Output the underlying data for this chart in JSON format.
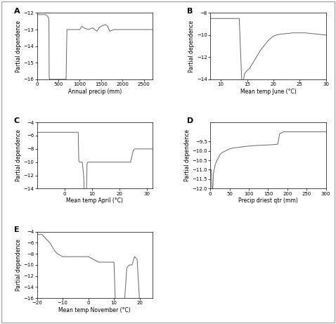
{
  "panel_labels": [
    "A",
    "B",
    "C",
    "D",
    "E"
  ],
  "xlabels": [
    "Annual precip (mm)",
    "Mean temp June (°C)",
    "Mean temp April (°C)",
    "Precip driest qtr (mm)",
    "Mean temp November (°C)"
  ],
  "ylabel": "Partial dependence",
  "A": {
    "xlim": [
      0,
      2700
    ],
    "ylim": [
      -16,
      -12
    ],
    "xticks": [
      0,
      500,
      1000,
      1500,
      2000,
      2500
    ],
    "yticks": [
      -16,
      -15,
      -14,
      -13,
      -12
    ],
    "x": [
      0,
      50,
      100,
      150,
      200,
      250,
      270,
      280,
      285,
      290,
      295,
      300,
      310,
      350,
      400,
      500,
      600,
      650,
      680,
      700,
      750,
      800,
      850,
      900,
      950,
      1000,
      1050,
      1100,
      1200,
      1300,
      1350,
      1400,
      1450,
      1500,
      1550,
      1600,
      1650,
      1700,
      1800,
      2000,
      2200,
      2500,
      2700
    ],
    "y": [
      -12.1,
      -12.1,
      -12.1,
      -12.1,
      -12.1,
      -12.2,
      -12.3,
      -12.5,
      -15.8,
      -16.0,
      -16.0,
      -16.0,
      -16.0,
      -16.0,
      -16.0,
      -16.0,
      -16.0,
      -16.0,
      -16.0,
      -13.0,
      -13.0,
      -13.0,
      -13.0,
      -13.0,
      -13.0,
      -13.0,
      -12.8,
      -12.9,
      -13.0,
      -12.9,
      -13.0,
      -13.1,
      -12.9,
      -12.8,
      -12.75,
      -12.7,
      -12.8,
      -13.1,
      -13.0,
      -13.0,
      -13.0,
      -13.0,
      -13.0
    ]
  },
  "B": {
    "xlim": [
      8,
      30
    ],
    "ylim": [
      -14,
      -8
    ],
    "xticks": [
      10,
      15,
      20,
      25,
      30
    ],
    "yticks": [
      -14,
      -12,
      -10,
      -8
    ],
    "x": [
      8,
      9,
      10,
      11,
      12,
      13,
      13.5,
      14.0,
      14.2,
      14.5,
      15.0,
      15.5,
      16.0,
      16.5,
      17.0,
      17.5,
      18.0,
      18.5,
      19.0,
      19.5,
      20.0,
      20.5,
      21.0,
      21.5,
      22.0,
      22.5,
      23.0,
      23.5,
      24.0,
      25.0,
      26.0,
      27.0,
      28.0,
      29.0,
      30.0
    ],
    "y": [
      -8.5,
      -8.5,
      -8.5,
      -8.5,
      -8.5,
      -8.5,
      -8.5,
      -14.4,
      -14.4,
      -13.5,
      -13.2,
      -13.0,
      -12.6,
      -12.2,
      -11.8,
      -11.4,
      -11.1,
      -10.8,
      -10.5,
      -10.3,
      -10.1,
      -10.0,
      -9.95,
      -9.9,
      -9.9,
      -9.85,
      -9.85,
      -9.8,
      -9.8,
      -9.8,
      -9.8,
      -9.85,
      -9.9,
      -9.95,
      -10.0
    ]
  },
  "C": {
    "xlim": [
      -10,
      32
    ],
    "ylim": [
      -14,
      -4
    ],
    "xticks": [
      0,
      10,
      20,
      30
    ],
    "yticks": [
      -14,
      -12,
      -10,
      -8,
      -6,
      -4
    ],
    "x": [
      -10,
      -8,
      -6,
      -4,
      -2,
      0,
      1,
      2,
      3,
      4,
      5,
      5.2,
      5.5,
      6.0,
      6.5,
      7.0,
      7.2,
      7.5,
      8.0,
      8.2,
      8.5,
      9.0,
      10.0,
      12.0,
      15.0,
      18.0,
      20.0,
      22.0,
      24.0,
      25.0,
      25.5,
      26.0,
      26.5,
      27.0,
      28.0,
      30.0,
      32.0
    ],
    "y": [
      -5.5,
      -5.5,
      -5.5,
      -5.5,
      -5.5,
      -5.5,
      -5.5,
      -5.5,
      -5.5,
      -5.5,
      -5.5,
      -9.8,
      -10.0,
      -10.0,
      -10.0,
      -12.2,
      -14.5,
      -14.5,
      -14.5,
      -10.2,
      -10.0,
      -10.0,
      -10.0,
      -10.0,
      -10.0,
      -10.0,
      -10.0,
      -10.0,
      -10.0,
      -8.2,
      -8.0,
      -8.0,
      -8.0,
      -8.0,
      -8.0,
      -8.0,
      -8.0
    ]
  },
  "D": {
    "xlim": [
      0,
      300
    ],
    "ylim": [
      -12.0,
      -8.5
    ],
    "xticks": [
      0,
      50,
      100,
      150,
      200,
      250,
      300
    ],
    "yticks": [
      -12.0,
      -11.5,
      -11.0,
      -10.5,
      -10.0,
      -9.5
    ],
    "x": [
      0,
      2,
      3,
      4,
      5,
      6,
      7,
      8,
      10,
      12,
      15,
      20,
      25,
      30,
      40,
      50,
      60,
      80,
      100,
      120,
      140,
      160,
      175,
      180,
      185,
      190,
      195,
      200,
      210,
      220,
      240,
      260,
      280,
      300
    ],
    "y": [
      -11.0,
      -11.0,
      -11.2,
      -11.9,
      -12.0,
      -12.0,
      -11.8,
      -11.2,
      -11.0,
      -10.8,
      -10.6,
      -10.4,
      -10.2,
      -10.1,
      -10.0,
      -9.9,
      -9.85,
      -9.8,
      -9.75,
      -9.72,
      -9.7,
      -9.68,
      -9.65,
      -9.1,
      -9.05,
      -9.0,
      -9.0,
      -9.0,
      -9.0,
      -9.0,
      -9.0,
      -9.0,
      -9.0,
      -9.0
    ]
  },
  "E": {
    "xlim": [
      -20,
      25
    ],
    "ylim": [
      -16,
      -4
    ],
    "xticks": [
      -20,
      -10,
      0,
      10,
      20
    ],
    "yticks": [
      -16,
      -14,
      -12,
      -10,
      -8,
      -6,
      -4
    ],
    "x": [
      -20,
      -18,
      -16,
      -15,
      -13,
      -12,
      -10,
      -8,
      -6,
      -4,
      -2,
      0,
      2,
      4,
      6,
      8,
      10,
      10.5,
      11,
      12,
      13,
      14,
      15,
      16,
      17,
      18,
      19,
      20,
      21,
      22,
      23,
      24,
      25
    ],
    "y": [
      -4.5,
      -4.5,
      -5.5,
      -6.0,
      -7.5,
      -8.0,
      -8.5,
      -8.5,
      -8.5,
      -8.5,
      -8.5,
      -8.5,
      -9.0,
      -9.5,
      -9.5,
      -9.5,
      -9.5,
      -16.5,
      -17.0,
      -17.0,
      -17.0,
      -17.0,
      -10.5,
      -10.0,
      -10.0,
      -8.5,
      -9.0,
      -17.0,
      -17.0,
      -17.0,
      -17.0,
      -17.0,
      -17.0
    ]
  },
  "figure_border_color": "#aaaaaa",
  "line_color": "#666666",
  "background": "#ffffff"
}
